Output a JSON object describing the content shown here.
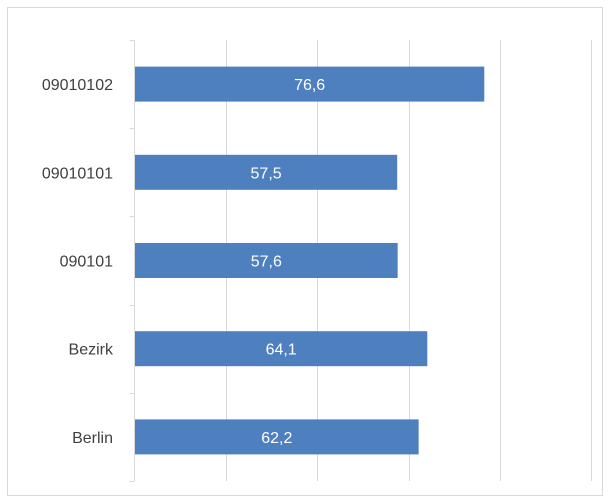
{
  "chart_data": {
    "type": "bar",
    "orientation": "horizontal",
    "categories": [
      "09010102",
      "09010101",
      "090101",
      "Bezirk",
      "Berlin"
    ],
    "values": [
      76.6,
      57.5,
      57.6,
      64.1,
      62.2
    ],
    "data_labels": [
      "76,6",
      "57,5",
      "57,6",
      "64,1",
      "62,2"
    ],
    "xlim": [
      0,
      100
    ],
    "grid": true,
    "legend": "none",
    "bar_color": "#4e7fbf",
    "gridline_color": "#d9d9d9",
    "title": "",
    "xlabel": "",
    "ylabel": ""
  }
}
